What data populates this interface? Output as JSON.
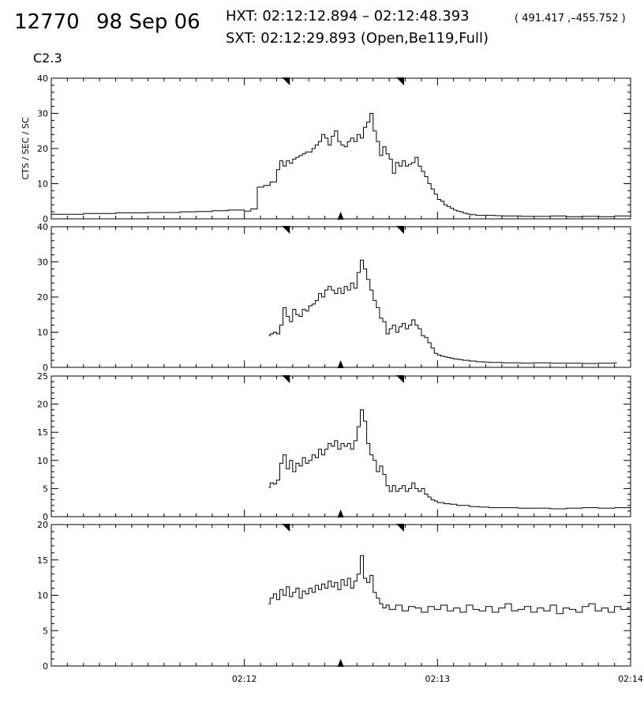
{
  "header": {
    "event_id": "12770",
    "date": "98 Sep 06",
    "hxt": "HXT: 02:12:12.894 – 02:12:48.393",
    "coords": "( 491.417 ,–455.752 )",
    "sxt": "SXT: 02:12:29.893 (Open,Be119,Full)",
    "flare_class": "C2.3"
  },
  "chart_data": [
    {
      "type": "line",
      "step": true,
      "panel": 1,
      "ylabel": "CTS / SEC / SC",
      "ylim": [
        0,
        40
      ],
      "yticks": [
        "0",
        "10",
        "20",
        "30",
        "40"
      ],
      "xlim_seconds": [
        0,
        180
      ],
      "xticks": [
        {
          "t": 60,
          "label": "02:12"
        },
        {
          "t": 120,
          "label": "02:13"
        },
        {
          "t": 180,
          "label": "02:14"
        }
      ],
      "markers_seconds": {
        "top": [
          72.9,
          108.4
        ],
        "bottom": [
          89.9
        ]
      },
      "x": [
        0,
        10,
        20,
        30,
        40,
        45,
        50,
        55,
        60,
        62,
        64,
        66,
        68,
        70,
        71,
        72,
        73,
        74,
        75,
        76,
        77,
        78,
        79,
        80,
        81,
        82,
        83,
        84,
        85,
        86,
        87,
        88,
        89,
        90,
        91,
        92,
        93,
        94,
        95,
        96,
        97,
        98,
        99,
        100,
        101,
        102,
        103,
        104,
        105,
        106,
        107,
        108,
        109,
        110,
        111,
        112,
        113,
        114,
        115,
        116,
        117,
        118,
        119,
        120,
        121,
        122,
        123,
        124,
        125,
        126,
        127,
        128,
        129,
        130,
        132,
        134,
        136,
        138,
        140,
        143,
        146,
        150,
        155,
        160,
        165,
        170,
        175,
        180
      ],
      "y": [
        1.3,
        1.5,
        1.7,
        1.8,
        2.0,
        2.1,
        2.3,
        2.5,
        2.2,
        2.8,
        9.0,
        9.5,
        10.5,
        14.0,
        16.5,
        15.0,
        16.5,
        15.8,
        17.0,
        17.5,
        18.0,
        18.5,
        19.0,
        19.0,
        20.0,
        21.0,
        22.0,
        24.0,
        23.0,
        21.0,
        23.5,
        25.0,
        22.0,
        21.0,
        20.5,
        22.0,
        23.0,
        22.0,
        24.0,
        23.0,
        26.0,
        27.5,
        30.0,
        25.0,
        22.0,
        18.0,
        20.5,
        18.5,
        17.0,
        13.0,
        16.0,
        15.0,
        16.5,
        15.0,
        15.5,
        16.0,
        17.5,
        15.0,
        13.5,
        12.0,
        10.0,
        8.5,
        7.0,
        5.5,
        5.0,
        4.0,
        3.5,
        3.0,
        2.5,
        2.2,
        2.0,
        1.6,
        1.4,
        1.2,
        1.0,
        1.0,
        1.0,
        0.9,
        0.8,
        0.8,
        0.7,
        0.7,
        0.8,
        0.6,
        0.7,
        0.6,
        0.8,
        1.2
      ]
    },
    {
      "type": "line",
      "step": true,
      "panel": 2,
      "ylim": [
        0,
        40
      ],
      "yticks": [
        "0",
        "10",
        "20",
        "30",
        "40"
      ],
      "xlim_seconds": [
        0,
        180
      ],
      "xticks": [
        {
          "t": 60,
          "label": "02:12"
        },
        {
          "t": 120,
          "label": "02:13"
        },
        {
          "t": 180,
          "label": "02:14"
        }
      ],
      "markers_seconds": {
        "top": [
          72.9,
          108.4
        ],
        "bottom": [
          89.9
        ]
      },
      "x": [
        67.5,
        68,
        69,
        70,
        71,
        72,
        73,
        74,
        75,
        76,
        77,
        78,
        79,
        80,
        81,
        82,
        83,
        84,
        85,
        86,
        87,
        88,
        89,
        90,
        91,
        92,
        93,
        94,
        95,
        96,
        97,
        98,
        99,
        100,
        101,
        102,
        103,
        104,
        105,
        106,
        107,
        108,
        109,
        110,
        111,
        112,
        113,
        114,
        115,
        116,
        117,
        118,
        119,
        120,
        121,
        122,
        123,
        124,
        125,
        126,
        127,
        128,
        129,
        130,
        132,
        134,
        136,
        138,
        140,
        143,
        146,
        150,
        155,
        160,
        165,
        170,
        175
      ],
      "y": [
        9.0,
        9.5,
        10.0,
        9.5,
        12.0,
        17.0,
        14.5,
        13.0,
        16.5,
        15.0,
        14.5,
        16.5,
        16.0,
        17.5,
        18.0,
        19.0,
        21.0,
        20.0,
        22.0,
        23.0,
        22.0,
        21.0,
        22.5,
        21.0,
        23.0,
        22.0,
        24.0,
        22.5,
        27.0,
        30.5,
        28.0,
        25.0,
        22.0,
        19.0,
        17.0,
        14.0,
        13.0,
        9.5,
        11.0,
        12.0,
        10.0,
        11.5,
        12.5,
        11.0,
        12.0,
        13.5,
        12.0,
        11.0,
        9.0,
        8.5,
        7.0,
        5.5,
        4.0,
        3.5,
        3.2,
        3.0,
        2.8,
        2.6,
        2.4,
        2.3,
        2.2,
        2.0,
        2.0,
        1.8,
        1.6,
        1.5,
        1.4,
        1.4,
        1.3,
        1.3,
        1.2,
        1.3,
        1.2,
        1.2,
        1.1,
        1.2,
        1.3
      ]
    },
    {
      "type": "line",
      "step": true,
      "panel": 3,
      "ylim": [
        0,
        25
      ],
      "yticks": [
        "0",
        "5",
        "10",
        "15",
        "20",
        "25"
      ],
      "xlim_seconds": [
        0,
        180
      ],
      "xticks": [
        {
          "t": 60,
          "label": "02:12"
        },
        {
          "t": 120,
          "label": "02:13"
        },
        {
          "t": 180,
          "label": "02:14"
        }
      ],
      "markers_seconds": {
        "top": [
          72.9,
          108.4
        ],
        "bottom": [
          89.9
        ]
      },
      "x": [
        67.5,
        68,
        69,
        70,
        71,
        72,
        73,
        74,
        75,
        76,
        77,
        78,
        79,
        80,
        81,
        82,
        83,
        84,
        85,
        86,
        87,
        88,
        89,
        90,
        91,
        92,
        93,
        94,
        95,
        96,
        97,
        98,
        99,
        100,
        101,
        102,
        103,
        104,
        105,
        106,
        107,
        108,
        109,
        110,
        111,
        112,
        113,
        114,
        115,
        116,
        117,
        118,
        119,
        120,
        122,
        124,
        126,
        128,
        130,
        133,
        136,
        140,
        145,
        150,
        155,
        160,
        165,
        170,
        175,
        180
      ],
      "y": [
        5.2,
        6.0,
        5.8,
        6.5,
        9.5,
        11.0,
        8.5,
        10.0,
        8.0,
        9.5,
        9.0,
        10.5,
        9.5,
        10.0,
        11.0,
        10.5,
        12.0,
        11.0,
        12.0,
        13.0,
        12.5,
        13.5,
        12.0,
        13.0,
        12.5,
        13.0,
        12.0,
        13.5,
        16.0,
        19.0,
        17.0,
        13.0,
        11.0,
        10.0,
        8.0,
        9.0,
        7.5,
        5.5,
        4.5,
        5.5,
        4.5,
        5.0,
        5.5,
        4.5,
        5.0,
        6.0,
        5.0,
        4.5,
        5.0,
        4.0,
        3.5,
        3.0,
        2.8,
        2.5,
        2.3,
        2.2,
        2.0,
        2.0,
        1.8,
        1.7,
        1.6,
        1.6,
        1.5,
        1.5,
        1.4,
        1.5,
        1.6,
        1.5,
        1.6,
        1.8
      ]
    },
    {
      "type": "line",
      "step": true,
      "panel": 4,
      "ylim": [
        0,
        20
      ],
      "yticks": [
        "0",
        "5",
        "10",
        "15",
        "20"
      ],
      "xlim_seconds": [
        0,
        180
      ],
      "xticks": [
        {
          "t": 60,
          "label": "02:12"
        },
        {
          "t": 120,
          "label": "02:13"
        },
        {
          "t": 180,
          "label": "02:14"
        }
      ],
      "markers_seconds": {
        "top": [
          72.9,
          108.4
        ],
        "bottom": [
          89.9
        ]
      },
      "x": [
        67.5,
        68,
        69,
        70,
        71,
        72,
        73,
        74,
        75,
        76,
        77,
        78,
        79,
        80,
        81,
        82,
        83,
        84,
        85,
        86,
        87,
        88,
        89,
        90,
        91,
        92,
        93,
        94,
        95,
        96,
        97,
        98,
        99,
        100,
        101,
        102,
        103,
        104,
        105,
        107,
        109,
        111,
        113,
        115,
        117,
        119,
        121,
        123,
        125,
        127,
        129,
        131,
        133,
        135,
        137,
        139,
        141,
        143,
        145,
        147,
        149,
        151,
        153,
        155,
        157,
        159,
        161,
        163,
        165,
        167,
        169,
        171,
        173,
        175,
        177,
        179
      ],
      "y": [
        8.8,
        9.6,
        10.2,
        9.4,
        10.8,
        10.0,
        11.2,
        9.8,
        10.4,
        11.0,
        9.6,
        10.6,
        10.2,
        11.0,
        10.4,
        11.4,
        10.8,
        11.6,
        11.0,
        12.0,
        11.2,
        11.8,
        10.8,
        12.2,
        11.4,
        12.4,
        11.0,
        12.0,
        13.0,
        15.6,
        12.4,
        11.8,
        12.8,
        10.4,
        9.6,
        8.8,
        8.2,
        8.6,
        8.0,
        8.6,
        7.8,
        8.4,
        8.2,
        7.6,
        8.4,
        8.0,
        8.6,
        7.8,
        8.2,
        7.6,
        8.6,
        8.0,
        7.8,
        8.4,
        7.6,
        8.2,
        8.8,
        7.8,
        8.0,
        8.4,
        7.6,
        8.2,
        7.8,
        8.6,
        7.4,
        8.2,
        8.0,
        7.6,
        8.4,
        8.8,
        7.8,
        8.2,
        7.6,
        8.4,
        8.0,
        8.2
      ]
    }
  ]
}
